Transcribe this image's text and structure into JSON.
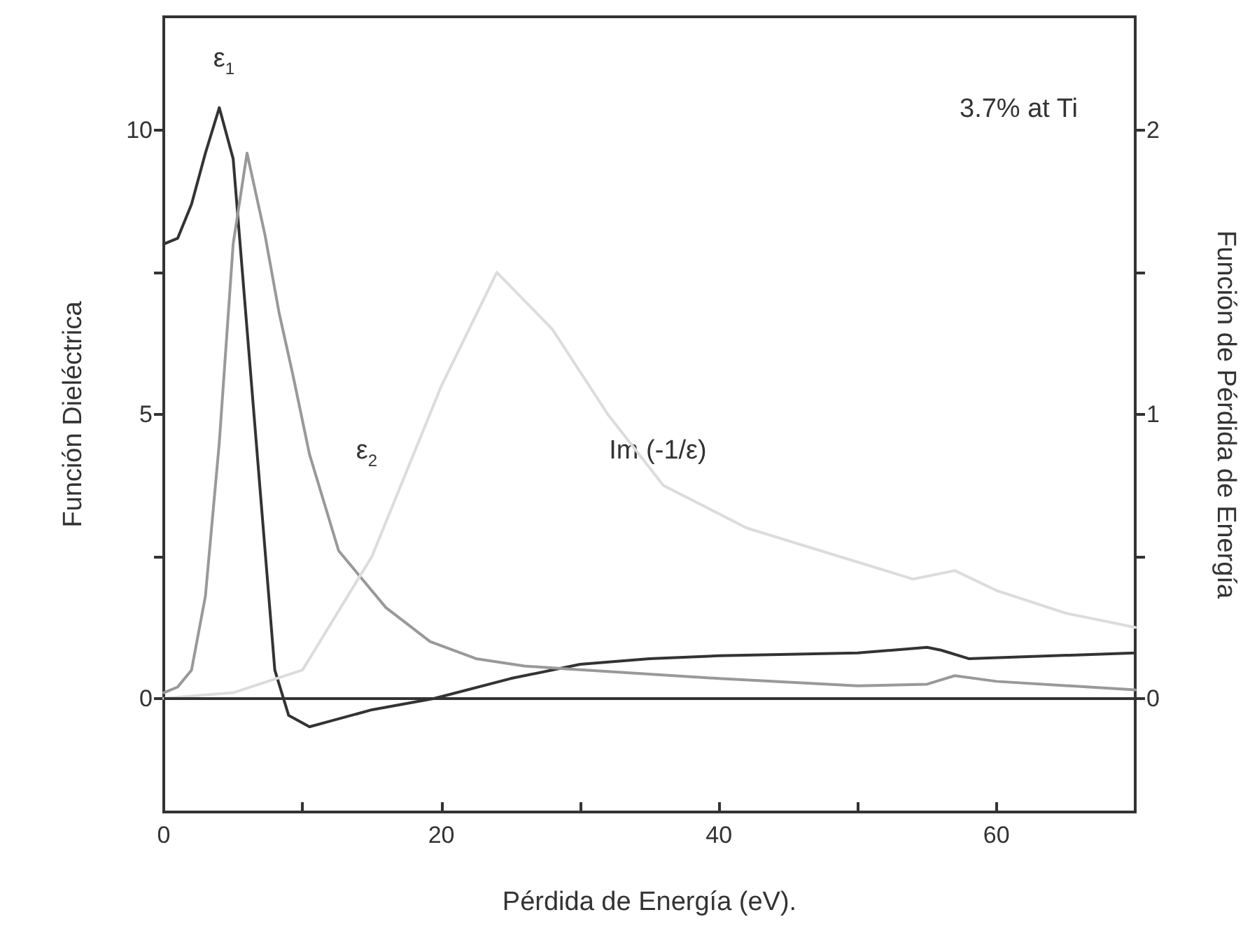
{
  "chart_data": {
    "type": "line",
    "xlabel": "Pérdida de Energía (eV).",
    "ylabel": "Función Dieléctrica",
    "y2label": "Función de Pérdida de Energía",
    "xlim": [
      0,
      70
    ],
    "xticks": [
      0,
      {
        "value": 10,
        "label": null
      },
      20,
      {
        "value": 30,
        "label": null
      },
      40,
      {
        "value": 50,
        "label": null
      },
      60
    ],
    "ylim": [
      -2,
      12
    ],
    "yticks": [
      0,
      {
        "value": 2.5,
        "label": null
      },
      5,
      {
        "value": 7.5,
        "label": null
      },
      10
    ],
    "y2lim": [
      -0.4,
      2.4
    ],
    "y2ticks": [
      0,
      {
        "value": 0.5,
        "label": null
      },
      1,
      {
        "value": 1.5,
        "label": null
      },
      2
    ],
    "grid": false,
    "legend": false,
    "marker": "none",
    "line_style": "solid",
    "ref_lines": [
      {
        "axis": "y",
        "value": 0,
        "label": null,
        "color": "#333333"
      }
    ],
    "annotations": [
      "ε$_{1}$",
      "ε$_{2}$",
      "Im (-1/ε)",
      "3.7% at Ti"
    ],
    "series": [
      {
        "color": "#333333",
        "x": [
          0,
          1,
          2,
          3,
          4,
          5,
          6,
          7,
          8,
          9,
          10.5,
          12,
          15,
          19.5,
          25,
          30,
          35,
          40,
          50,
          55,
          56,
          58,
          70
        ],
        "values": [
          8,
          8.1,
          8.7,
          9.6,
          10.4,
          9.5,
          6.5,
          3.5,
          0.5,
          -0.3,
          -0.5,
          -0.4,
          -0.2,
          0,
          0.35,
          0.6,
          0.7,
          0.75,
          0.8,
          0.9,
          0.85,
          0.7,
          0.8
        ]
      },
      {
        "color": "#999999",
        "x": [
          0,
          1,
          2,
          3,
          4,
          5,
          6,
          7.3,
          8.3,
          9.3,
          10.5,
          12.6,
          16,
          19.2,
          22.5,
          26,
          29,
          40,
          50,
          55,
          57,
          60,
          70
        ],
        "values": [
          0.1,
          0.2,
          0.5,
          1.8,
          4.5,
          8,
          9.6,
          8.15,
          6.8,
          5.7,
          4.3,
          2.6,
          1.6,
          1,
          0.7,
          0.57,
          0.52,
          0.35,
          0.22,
          0.25,
          0.4,
          0.3,
          0.15
        ]
      },
      {
        "color": "#dcdcdc",
        "axis": "y2",
        "x": [
          0,
          5,
          10,
          15,
          20,
          24,
          28,
          32,
          36,
          42,
          50,
          54,
          57,
          60,
          65,
          70
        ],
        "values": [
          0,
          0.02,
          0.1,
          0.5,
          1.1,
          1.5,
          1.3,
          1.0,
          0.75,
          0.6,
          0.48,
          0.42,
          0.45,
          0.38,
          0.3,
          0.25
        ]
      }
    ]
  }
}
